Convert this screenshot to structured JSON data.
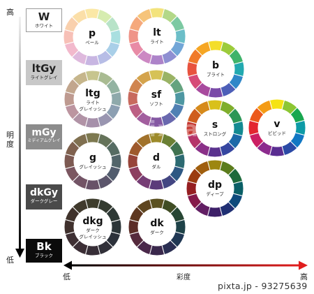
{
  "axis": {
    "vertical_high": "高",
    "vertical_label": [
      "明",
      "度"
    ],
    "vertical_low": "低",
    "horizontal_low": "低",
    "horizontal_label": "彩度",
    "horizontal_high": "高"
  },
  "tones_achromatic": [
    {
      "code": "W",
      "name": "ホワイト",
      "fill": "#ffffff",
      "text": "#222222"
    },
    {
      "code": "ltGy",
      "name": "ライトグレイ",
      "fill": "#c8c8c8",
      "text": "#222222"
    },
    {
      "code": "mGy",
      "name": "ミディアムグレイ",
      "fill": "#8c8c8c",
      "text": "#ffffff"
    },
    {
      "code": "dkGy",
      "name": "ダークグレー",
      "fill": "#4a4a4a",
      "text": "#ffffff"
    },
    {
      "code": "Bk",
      "name": "ブラック",
      "fill": "#0b0b0b",
      "text": "#ffffff"
    }
  ],
  "wheels": [
    {
      "id": "p",
      "code": "p",
      "name": [
        "ペール"
      ],
      "colors": [
        "#fbe8a6",
        "#d6ecb0",
        "#b8e3c8",
        "#a9dfe0",
        "#a9cfe8",
        "#b7bde6",
        "#c8b6e2",
        "#deb9dd",
        "#f2b9cc",
        "#f7c0b7",
        "#f9d0ad",
        "#fbdfa8"
      ]
    },
    {
      "id": "lt",
      "code": "lt",
      "name": [
        "ライト"
      ],
      "colors": [
        "#f3e37c",
        "#b3d888",
        "#7cc9a2",
        "#6cbec8",
        "#72a6d7",
        "#8f8fd2",
        "#ad83c9",
        "#cc88c3",
        "#e88ba6",
        "#ef9488",
        "#f5a97c",
        "#f6c47a"
      ]
    },
    {
      "id": "b",
      "code": "b",
      "name": [
        "ブライト"
      ],
      "colors": [
        "#f4de2b",
        "#9ccb3b",
        "#3fb36a",
        "#22a9b0",
        "#2f87c8",
        "#4d5fb8",
        "#7a4aa8",
        "#a84a9e",
        "#d64a78",
        "#e8533f",
        "#f07a2a",
        "#f6a623"
      ]
    },
    {
      "id": "ltg",
      "code": "ltg",
      "name": [
        "ライト",
        "グレイッシュ"
      ],
      "colors": [
        "#c7c58e",
        "#a9bb92",
        "#93b3a2",
        "#8ea9ab",
        "#8c9fb2",
        "#9995b0",
        "#a690aa",
        "#b193a6",
        "#bc95a0",
        "#be9a90",
        "#c2a68e",
        "#c6b68c"
      ]
    },
    {
      "id": "sf",
      "code": "sf",
      "name": [
        "ソフト"
      ],
      "colors": [
        "#d6c256",
        "#9ab365",
        "#65a37f",
        "#4e97a2",
        "#5080b3",
        "#6968ae",
        "#8458a3",
        "#a25e9e",
        "#bc5f84",
        "#c86a5e",
        "#d08550",
        "#d4a34c"
      ]
    },
    {
      "id": "s",
      "code": "s",
      "name": [
        "ストロング"
      ],
      "colors": [
        "#d9c01a",
        "#7fae2c",
        "#2c9656",
        "#138a92",
        "#1d69a8",
        "#3546a0",
        "#5a328e",
        "#8a3088",
        "#b5336a",
        "#c63a33",
        "#cf5e1f",
        "#d68a1b"
      ]
    },
    {
      "id": "v",
      "code": "v",
      "name": [
        "ビビッド"
      ],
      "colors": [
        "#f5e313",
        "#8cc633",
        "#19a750",
        "#0d9aa6",
        "#1177c3",
        "#2b4aa6",
        "#5a2d91",
        "#8c2b8e",
        "#cc1f63",
        "#e3262f",
        "#ec5a1c",
        "#f49b15"
      ]
    },
    {
      "id": "g",
      "code": "g",
      "name": [
        "グレイッシュ"
      ],
      "colors": [
        "#7d7950",
        "#65735a",
        "#566c63",
        "#52656a",
        "#525d6e",
        "#5c566c",
        "#685268",
        "#735466",
        "#7b5660",
        "#7d5a52",
        "#7f614e",
        "#807050"
      ]
    },
    {
      "id": "d",
      "code": "d",
      "name": [
        "ダル"
      ],
      "colors": [
        "#9c8a2a",
        "#6b8034",
        "#3f7250",
        "#2c6a72",
        "#2e5883",
        "#434682",
        "#5b3b7a",
        "#763d75",
        "#8d3e5f",
        "#974439",
        "#9e5a2c",
        "#a1722b"
      ]
    },
    {
      "id": "dp",
      "code": "dp",
      "name": [
        "ディープ"
      ],
      "colors": [
        "#9d8610",
        "#5b7c1c",
        "#1d6a3b",
        "#0a5f66",
        "#0e4a7c",
        "#1f2f73",
        "#3d1f68",
        "#621e63",
        "#85194a",
        "#951e21",
        "#9b3c10",
        "#a05e0d"
      ]
    },
    {
      "id": "dkg",
      "code": "dkg",
      "name": [
        "ダーク",
        "グレイッシュ"
      ],
      "colors": [
        "#3e3d2d",
        "#343b30",
        "#2e3935",
        "#2c3538",
        "#2c313a",
        "#313039",
        "#372e37",
        "#3b2e35",
        "#3e2f33",
        "#3f302d",
        "#40332c",
        "#403a2d"
      ]
    },
    {
      "id": "dk",
      "code": "dk",
      "name": [
        "ダーク"
      ],
      "colors": [
        "#5b5120",
        "#404d24",
        "#274634",
        "#1e4248",
        "#1f3753",
        "#2a2e52",
        "#3a284c",
        "#4a284a",
        "#552a3c",
        "#5b2d27",
        "#5e3820",
        "#5f4620"
      ]
    }
  ],
  "watermark": "pixta",
  "footer": "pixta.jp - 93275639"
}
